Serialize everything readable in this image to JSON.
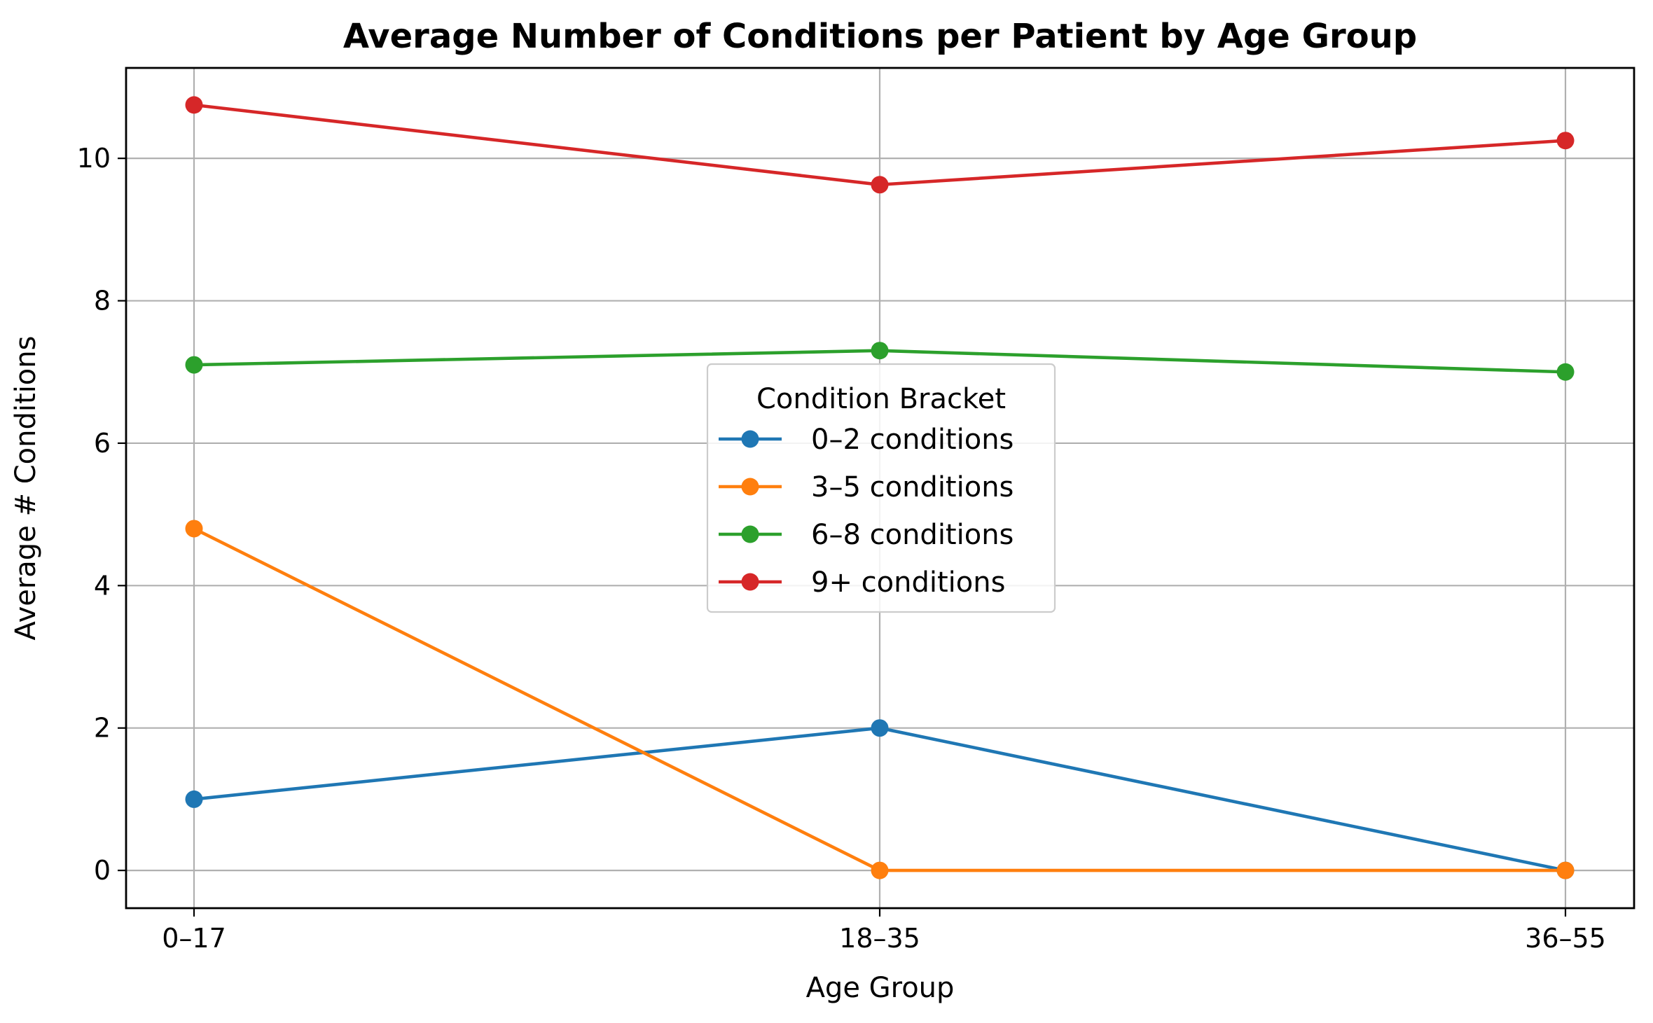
{
  "chart_data": {
    "type": "line",
    "title": "Average Number of Conditions per Patient by Age Group",
    "xlabel": "Age Group",
    "ylabel": "Average # Conditions",
    "categories": [
      "0–17",
      "18–35",
      "36–55"
    ],
    "ylim": [
      -0.53,
      11.27
    ],
    "yticks": [
      0,
      2,
      4,
      6,
      8,
      10
    ],
    "grid": true,
    "legend": {
      "title": "Condition Bracket",
      "placement": "center"
    },
    "series": [
      {
        "name": "0–2 conditions",
        "color": "#1f77b4",
        "values": [
          1.0,
          2.0,
          0.0
        ]
      },
      {
        "name": "3–5 conditions",
        "color": "#ff7f0e",
        "values": [
          4.8,
          0.0,
          0.0
        ]
      },
      {
        "name": "6–8 conditions",
        "color": "#2ca02c",
        "values": [
          7.1,
          7.3,
          7.0
        ]
      },
      {
        "name": "9+ conditions",
        "color": "#d62728",
        "values": [
          10.75,
          9.63,
          10.25
        ]
      }
    ]
  }
}
